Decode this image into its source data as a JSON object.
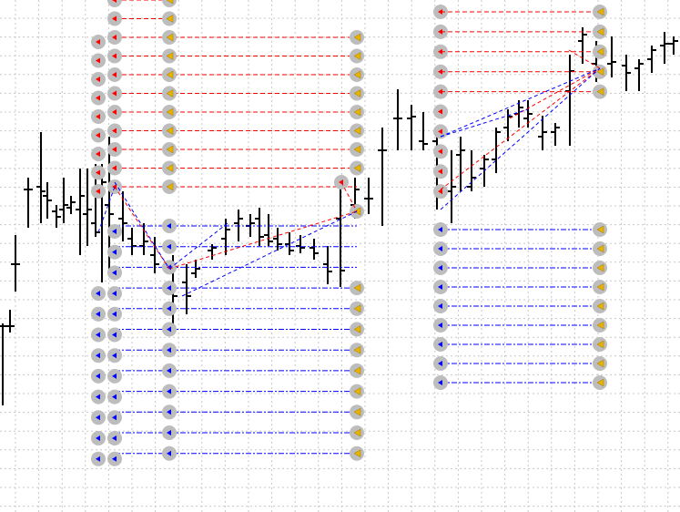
{
  "window": {
    "grid": true
  }
}
